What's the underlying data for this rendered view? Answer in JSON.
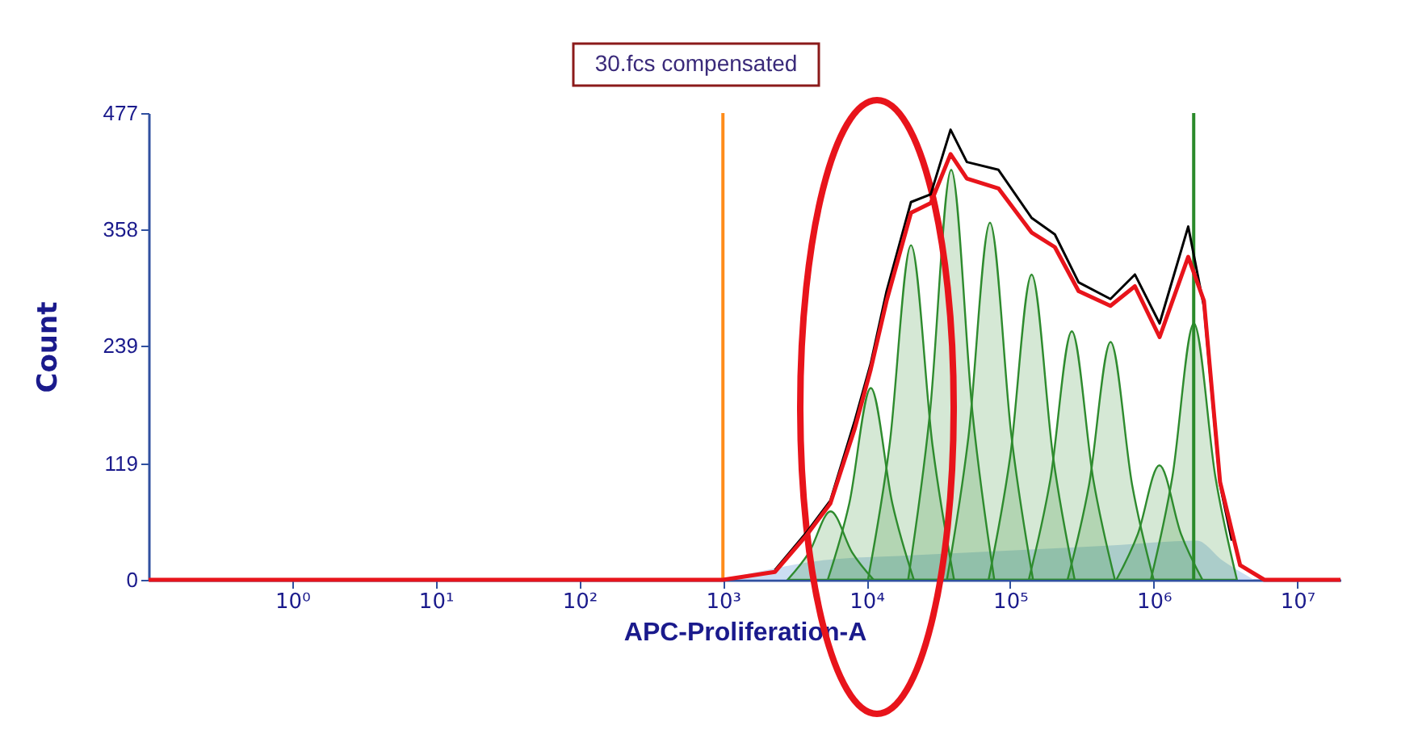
{
  "chart_data": {
    "type": "line",
    "title": "30.fcs compensated",
    "xlabel": "APC-Proliferation-A",
    "ylabel": "Count",
    "log": "x",
    "grid": false,
    "marker": "none",
    "xlim": [
      0.1,
      20000000
    ],
    "xticks": [
      {
        "value": 1,
        "label": "10⁰"
      },
      {
        "value": 10,
        "label": "10¹"
      },
      {
        "value": 100,
        "label": "10²"
      },
      {
        "value": 1000,
        "label": "10³"
      },
      {
        "value": 10000,
        "label": "10⁴"
      },
      {
        "value": 100000,
        "label": "10⁵"
      },
      {
        "value": 1000000,
        "label": "10⁶"
      },
      {
        "value": 10000000,
        "label": "10⁷"
      }
    ],
    "ylim": [
      0,
      477
    ],
    "yticks": [
      0,
      119,
      239,
      358,
      477
    ],
    "series": [
      {
        "type": "area",
        "color": "#a9c8ea",
        "x": [
          1000,
          2000,
          5000,
          20000,
          100000,
          500000,
          2000000,
          3000000,
          5000000
        ],
        "values": [
          0,
          10,
          20,
          25,
          30,
          35,
          40,
          20,
          0
        ]
      },
      {
        "type": "area",
        "color": "#2e8b2e",
        "x": [
          2818,
          3981,
          5623,
          7943,
          11220
        ],
        "values": [
          0,
          28,
          70,
          28,
          0
        ]
      },
      {
        "type": "area",
        "color": "#2e8b2e",
        "x": [
          5370,
          7586,
          10715,
          15136,
          21380
        ],
        "values": [
          0,
          78,
          196,
          78,
          0
        ]
      },
      {
        "type": "area",
        "color": "#2e8b2e",
        "x": [
          10233,
          14454,
          20417,
          28840,
          40738
        ],
        "values": [
          0,
          137,
          342,
          137,
          0
        ]
      },
      {
        "type": "area",
        "color": "#2e8b2e",
        "x": [
          19498,
          27542,
          38905,
          54954,
          77625
        ],
        "values": [
          0,
          168,
          419,
          168,
          0
        ]
      },
      {
        "type": "area",
        "color": "#2e8b2e",
        "x": [
          36308,
          51286,
          72444,
          102329,
          144544
        ],
        "values": [
          0,
          146,
          365,
          146,
          0
        ]
      },
      {
        "type": "area",
        "color": "#2e8b2e",
        "x": [
          70795,
          100000,
          141254,
          199526,
          281838
        ],
        "values": [
          0,
          125,
          312,
          125,
          0
        ]
      },
      {
        "type": "area",
        "color": "#2e8b2e",
        "x": [
          134896,
          190546,
          269153,
          380189,
          537032
        ],
        "values": [
          0,
          102,
          254,
          102,
          0
        ]
      },
      {
        "type": "area",
        "color": "#2e8b2e",
        "x": [
          251189,
          354813,
          501187,
          707946,
          1000000
        ],
        "values": [
          0,
          97,
          243,
          97,
          0
        ]
      },
      {
        "type": "area",
        "color": "#2e8b2e",
        "x": [
          549541,
          776247,
          1096478,
          1548817,
          2187762
        ],
        "values": [
          0,
          47,
          117,
          47,
          0
        ]
      },
      {
        "type": "area",
        "color": "#2e8b2e",
        "x": [
          954993,
          1348963,
          1905461,
          2691535,
          3801894
        ],
        "values": [
          0,
          105,
          262,
          105,
          0
        ]
      },
      {
        "color": "#000000",
        "line_style": "solid",
        "x": [
          2300,
          3800,
          5600,
          8300,
          10700,
          13800,
          20400,
          28000,
          38500,
          50000,
          83000,
          141000,
          205000,
          300000,
          500000,
          740000,
          1100000,
          1740000,
          2240000,
          2900000,
          3500000
        ],
        "values": [
          10,
          48,
          81,
          163,
          221,
          295,
          386,
          394,
          460,
          427,
          419,
          370,
          353,
          304,
          287,
          312,
          262,
          361,
          279,
          97,
          40
        ]
      },
      {
        "color": "#e8141b",
        "line_style": "solid",
        "x": [
          0.1,
          1000,
          2300,
          3800,
          5600,
          8300,
          10700,
          13800,
          20400,
          28000,
          38500,
          50000,
          83000,
          141000,
          205000,
          300000,
          500000,
          740000,
          1100000,
          1740000,
          2240000,
          2900000,
          4000000,
          5900000,
          20000000
        ],
        "values": [
          0,
          0,
          8,
          45,
          78,
          155,
          215,
          285,
          375,
          385,
          435,
          410,
          400,
          355,
          340,
          295,
          280,
          300,
          248,
          330,
          285,
          100,
          15,
          0,
          0
        ]
      }
    ],
    "ref_lines": [
      {
        "axis": "x",
        "value": 1000,
        "color": "#ff8c1a"
      },
      {
        "axis": "x",
        "value": 1900000,
        "color": "#2a8a2a"
      }
    ]
  }
}
